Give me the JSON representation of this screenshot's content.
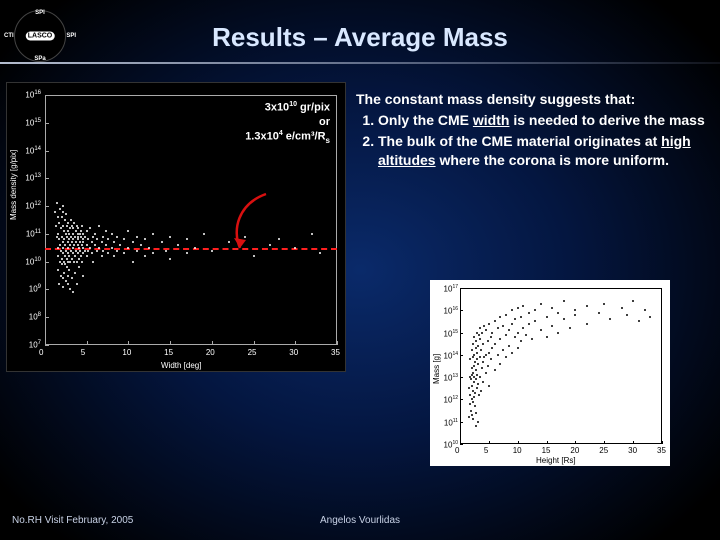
{
  "title": "Results – Average Mass",
  "logo_labels": {
    "top": "SPI",
    "left": "CTI",
    "right": "SPI",
    "bottom": "SPa",
    "center": "LASCO"
  },
  "annotation": {
    "line1_prefix": "3x10",
    "line1_exp": "10",
    "line1_suffix": " gr/pix",
    "line2": "or",
    "line3_prefix": "1.3x10",
    "line3_exp": "4",
    "line3_suffix": " e/cm³/R",
    "line3_sub": "s"
  },
  "body": {
    "lead": "The constant mass density suggests that:",
    "item1a": "Only the CME ",
    "item1_u": "width",
    "item1b": " is needed to derive the mass",
    "item2a": "The bulk of the CME material originates at ",
    "item2_u": "high altitudes",
    "item2b": " where the corona is more uniform."
  },
  "footer": {
    "left": "No.RH Visit February, 2005",
    "mid": "Angelos Vourlidas"
  },
  "chart_left": {
    "type": "scatter",
    "background_color": "#000000",
    "point_color": "#ffffff",
    "xlabel": "Width  [deg]",
    "ylabel": "Mass density  [g/pix]",
    "xlim": [
      0,
      35
    ],
    "ylim_log": [
      7,
      16
    ],
    "xtick_step": 5,
    "ytick_exps": [
      7,
      8,
      9,
      10,
      11,
      12,
      13,
      14,
      15,
      16
    ],
    "ref_line_y_exp": 10.48,
    "ref_line_color": "#ff2020",
    "ref_line_dash": true,
    "arrow_color": "#d81010",
    "label_fontsize": 8,
    "point_size": 2,
    "points": [
      [
        1.2,
        11.8
      ],
      [
        1.3,
        11.3
      ],
      [
        1.4,
        10.9
      ],
      [
        1.4,
        12.1
      ],
      [
        1.5,
        10.5
      ],
      [
        1.5,
        11.6
      ],
      [
        1.6,
        10.2
      ],
      [
        1.6,
        11.0
      ],
      [
        1.6,
        9.7
      ],
      [
        1.7,
        10.8
      ],
      [
        1.7,
        11.4
      ],
      [
        1.7,
        9.2
      ],
      [
        1.8,
        10.0
      ],
      [
        1.8,
        11.9
      ],
      [
        1.8,
        10.6
      ],
      [
        1.9,
        9.5
      ],
      [
        1.9,
        11.2
      ],
      [
        1.9,
        10.4
      ],
      [
        2.0,
        10.9
      ],
      [
        2.0,
        9.9
      ],
      [
        2.0,
        11.6
      ],
      [
        2.0,
        10.1
      ],
      [
        2.1,
        10.7
      ],
      [
        2.1,
        11.3
      ],
      [
        2.1,
        9.1
      ],
      [
        2.1,
        12.0
      ],
      [
        2.2,
        10.3
      ],
      [
        2.2,
        10.5
      ],
      [
        2.2,
        11.8
      ],
      [
        2.2,
        9.4
      ],
      [
        2.3,
        10.0
      ],
      [
        2.3,
        11.1
      ],
      [
        2.3,
        10.8
      ],
      [
        2.3,
        9.6
      ],
      [
        2.4,
        11.5
      ],
      [
        2.4,
        10.2
      ],
      [
        2.4,
        9.9
      ],
      [
        2.4,
        10.6
      ],
      [
        2.5,
        11.0
      ],
      [
        2.5,
        10.4
      ],
      [
        2.5,
        9.3
      ],
      [
        2.5,
        11.7
      ],
      [
        2.6,
        10.1
      ],
      [
        2.6,
        10.9
      ],
      [
        2.6,
        9.8
      ],
      [
        2.6,
        11.3
      ],
      [
        2.7,
        10.5
      ],
      [
        2.7,
        10.0
      ],
      [
        2.7,
        11.1
      ],
      [
        2.7,
        9.2
      ],
      [
        2.8,
        10.7
      ],
      [
        2.8,
        11.4
      ],
      [
        2.8,
        9.5
      ],
      [
        2.8,
        10.3
      ],
      [
        2.9,
        10.8
      ],
      [
        2.9,
        11.0
      ],
      [
        2.9,
        10.2
      ],
      [
        2.9,
        9.7
      ],
      [
        3.0,
        11.2
      ],
      [
        3.0,
        10.6
      ],
      [
        3.0,
        10.0
      ],
      [
        3.0,
        9.0
      ],
      [
        3.1,
        10.4
      ],
      [
        3.1,
        11.5
      ],
      [
        3.1,
        10.9
      ],
      [
        3.2,
        10.1
      ],
      [
        3.2,
        10.7
      ],
      [
        3.2,
        11.3
      ],
      [
        3.2,
        9.4
      ],
      [
        3.3,
        10.5
      ],
      [
        3.3,
        11.0
      ],
      [
        3.3,
        8.9
      ],
      [
        3.4,
        10.8
      ],
      [
        3.4,
        10.3
      ],
      [
        3.4,
        11.2
      ],
      [
        3.5,
        10.0
      ],
      [
        3.5,
        10.6
      ],
      [
        3.5,
        11.4
      ],
      [
        3.6,
        10.2
      ],
      [
        3.6,
        10.9
      ],
      [
        3.6,
        9.6
      ],
      [
        3.7,
        11.1
      ],
      [
        3.7,
        10.4
      ],
      [
        3.7,
        10.7
      ],
      [
        3.8,
        10.0
      ],
      [
        3.8,
        11.3
      ],
      [
        3.8,
        9.2
      ],
      [
        3.9,
        10.6
      ],
      [
        3.9,
        10.9
      ],
      [
        3.9,
        11.0
      ],
      [
        4.0,
        10.3
      ],
      [
        4.0,
        10.8
      ],
      [
        4.0,
        11.2
      ],
      [
        4.1,
        10.5
      ],
      [
        4.1,
        10.1
      ],
      [
        4.1,
        9.8
      ],
      [
        4.2,
        11.0
      ],
      [
        4.2,
        10.4
      ],
      [
        4.2,
        10.7
      ],
      [
        4.3,
        10.9
      ],
      [
        4.3,
        11.1
      ],
      [
        4.3,
        10.2
      ],
      [
        4.4,
        10.6
      ],
      [
        4.4,
        10.0
      ],
      [
        4.4,
        11.3
      ],
      [
        4.5,
        10.8
      ],
      [
        4.5,
        10.3
      ],
      [
        4.5,
        9.5
      ],
      [
        4.6,
        10.5
      ],
      [
        4.6,
        11.0
      ],
      [
        4.6,
        10.7
      ],
      [
        4.8,
        10.4
      ],
      [
        4.8,
        10.9
      ],
      [
        5.0,
        10.6
      ],
      [
        5.0,
        11.1
      ],
      [
        5.0,
        10.2
      ],
      [
        5.2,
        10.8
      ],
      [
        5.2,
        10.4
      ],
      [
        5.4,
        10.5
      ],
      [
        5.4,
        11.2
      ],
      [
        5.6,
        10.7
      ],
      [
        5.6,
        10.3
      ],
      [
        5.8,
        10.9
      ],
      [
        5.8,
        10.0
      ],
      [
        6.0,
        10.6
      ],
      [
        6.0,
        11.0
      ],
      [
        6.2,
        10.4
      ],
      [
        6.2,
        10.8
      ],
      [
        6.5,
        10.5
      ],
      [
        6.5,
        11.3
      ],
      [
        6.8,
        10.7
      ],
      [
        6.8,
        10.2
      ],
      [
        7.0,
        10.9
      ],
      [
        7.0,
        10.4
      ],
      [
        7.3,
        10.6
      ],
      [
        7.3,
        11.1
      ],
      [
        7.6,
        10.3
      ],
      [
        7.6,
        10.8
      ],
      [
        8.0,
        10.5
      ],
      [
        8.0,
        11.0
      ],
      [
        8.3,
        10.7
      ],
      [
        8.3,
        10.2
      ],
      [
        8.6,
        10.9
      ],
      [
        8.6,
        10.4
      ],
      [
        9.0,
        10.6
      ],
      [
        9.5,
        10.8
      ],
      [
        9.5,
        10.3
      ],
      [
        10.0,
        10.5
      ],
      [
        10.0,
        11.1
      ],
      [
        10.5,
        10.7
      ],
      [
        10.5,
        10.0
      ],
      [
        11.0,
        10.9
      ],
      [
        11.0,
        10.4
      ],
      [
        11.5,
        10.6
      ],
      [
        12.0,
        10.8
      ],
      [
        12.0,
        10.2
      ],
      [
        12.5,
        10.5
      ],
      [
        13.0,
        11.0
      ],
      [
        13.0,
        10.3
      ],
      [
        14.0,
        10.7
      ],
      [
        14.5,
        10.4
      ],
      [
        15.0,
        10.9
      ],
      [
        15.0,
        10.1
      ],
      [
        16.0,
        10.6
      ],
      [
        17.0,
        10.8
      ],
      [
        17.0,
        10.3
      ],
      [
        18.0,
        10.5
      ],
      [
        19.0,
        11.0
      ],
      [
        20.0,
        10.4
      ],
      [
        22.0,
        10.7
      ],
      [
        24.0,
        10.9
      ],
      [
        25.0,
        10.2
      ],
      [
        27.0,
        10.6
      ],
      [
        28.0,
        10.8
      ],
      [
        30.0,
        10.5
      ],
      [
        32.0,
        11.0
      ],
      [
        33.0,
        10.3
      ]
    ]
  },
  "chart_right": {
    "type": "scatter",
    "background_color": "#ffffff",
    "point_color": "#000000",
    "xlabel": "Height  [Rs]",
    "ylabel": "Mass  [g]",
    "xlim": [
      0,
      35
    ],
    "ylim_log": [
      10,
      17
    ],
    "xtick_step": 5,
    "ytick_exps": [
      10,
      11,
      12,
      13,
      14,
      15,
      16,
      17
    ],
    "label_fontsize": 7,
    "point_size": 2,
    "points": [
      [
        1.5,
        11.2
      ],
      [
        1.6,
        12.5
      ],
      [
        1.7,
        13.0
      ],
      [
        1.7,
        11.8
      ],
      [
        1.8,
        12.2
      ],
      [
        1.8,
        13.8
      ],
      [
        1.9,
        11.5
      ],
      [
        1.9,
        12.9
      ],
      [
        2.0,
        13.4
      ],
      [
        2.0,
        12.0
      ],
      [
        2.0,
        14.2
      ],
      [
        2.1,
        11.3
      ],
      [
        2.1,
        13.1
      ],
      [
        2.1,
        12.6
      ],
      [
        2.2,
        13.9
      ],
      [
        2.2,
        11.9
      ],
      [
        2.2,
        12.4
      ],
      [
        2.3,
        14.5
      ],
      [
        2.3,
        13.2
      ],
      [
        2.3,
        11.1
      ],
      [
        2.4,
        12.8
      ],
      [
        2.4,
        14.0
      ],
      [
        2.4,
        13.5
      ],
      [
        2.5,
        12.1
      ],
      [
        2.5,
        14.8
      ],
      [
        2.5,
        13.0
      ],
      [
        2.6,
        11.7
      ],
      [
        2.6,
        13.7
      ],
      [
        2.6,
        12.3
      ],
      [
        2.7,
        14.3
      ],
      [
        2.7,
        13.3
      ],
      [
        2.7,
        10.8
      ],
      [
        2.8,
        12.9
      ],
      [
        2.8,
        14.6
      ],
      [
        2.8,
        11.4
      ],
      [
        2.9,
        13.8
      ],
      [
        2.9,
        12.5
      ],
      [
        3.0,
        14.1
      ],
      [
        3.0,
        13.1
      ],
      [
        3.0,
        15.0
      ],
      [
        3.1,
        12.7
      ],
      [
        3.1,
        14.4
      ],
      [
        3.2,
        13.6
      ],
      [
        3.2,
        11.0
      ],
      [
        3.3,
        14.9
      ],
      [
        3.3,
        12.2
      ],
      [
        3.4,
        13.9
      ],
      [
        3.4,
        14.7
      ],
      [
        3.5,
        13.0
      ],
      [
        3.5,
        15.2
      ],
      [
        3.6,
        12.4
      ],
      [
        3.6,
        14.2
      ],
      [
        3.8,
        13.4
      ],
      [
        3.8,
        15.0
      ],
      [
        4.0,
        14.5
      ],
      [
        4.0,
        12.8
      ],
      [
        4.0,
        13.7
      ],
      [
        4.2,
        15.3
      ],
      [
        4.2,
        13.9
      ],
      [
        4.5,
        14.0
      ],
      [
        4.5,
        13.2
      ],
      [
        4.5,
        15.1
      ],
      [
        4.8,
        14.6
      ],
      [
        4.8,
        13.5
      ],
      [
        5.0,
        15.4
      ],
      [
        5.0,
        14.1
      ],
      [
        5.0,
        12.6
      ],
      [
        5.3,
        14.8
      ],
      [
        5.3,
        13.8
      ],
      [
        5.6,
        15.0
      ],
      [
        5.6,
        14.3
      ],
      [
        6.0,
        15.5
      ],
      [
        6.0,
        14.5
      ],
      [
        6.0,
        13.3
      ],
      [
        6.5,
        15.2
      ],
      [
        6.5,
        14.0
      ],
      [
        7.0,
        15.7
      ],
      [
        7.0,
        14.7
      ],
      [
        7.0,
        13.6
      ],
      [
        7.5,
        15.3
      ],
      [
        7.5,
        14.2
      ],
      [
        8.0,
        15.8
      ],
      [
        8.0,
        14.9
      ],
      [
        8.0,
        13.9
      ],
      [
        8.5,
        15.1
      ],
      [
        8.5,
        14.4
      ],
      [
        9.0,
        16.0
      ],
      [
        9.0,
        15.4
      ],
      [
        9.0,
        14.1
      ],
      [
        9.5,
        15.6
      ],
      [
        9.5,
        14.8
      ],
      [
        10.0,
        16.1
      ],
      [
        10.0,
        15.0
      ],
      [
        10.0,
        14.3
      ],
      [
        10.5,
        15.7
      ],
      [
        10.5,
        14.6
      ],
      [
        11.0,
        16.2
      ],
      [
        11.0,
        15.2
      ],
      [
        11.5,
        14.9
      ],
      [
        12.0,
        15.9
      ],
      [
        12.0,
        15.4
      ],
      [
        12.5,
        14.7
      ],
      [
        13.0,
        16.0
      ],
      [
        13.0,
        15.5
      ],
      [
        14.0,
        15.1
      ],
      [
        14.0,
        16.3
      ],
      [
        15.0,
        15.7
      ],
      [
        15.0,
        14.8
      ],
      [
        16.0,
        16.1
      ],
      [
        16.0,
        15.3
      ],
      [
        17.0,
        15.9
      ],
      [
        17.0,
        15.0
      ],
      [
        18.0,
        16.4
      ],
      [
        18.0,
        15.6
      ],
      [
        19.0,
        15.2
      ],
      [
        20.0,
        16.0
      ],
      [
        20.0,
        15.8
      ],
      [
        22.0,
        16.2
      ],
      [
        22.0,
        15.4
      ],
      [
        24.0,
        15.9
      ],
      [
        25.0,
        16.3
      ],
      [
        26.0,
        15.6
      ],
      [
        28.0,
        16.1
      ],
      [
        29.0,
        15.8
      ],
      [
        30.0,
        16.4
      ],
      [
        31.0,
        15.5
      ],
      [
        32.0,
        16.0
      ],
      [
        33.0,
        15.7
      ]
    ]
  }
}
